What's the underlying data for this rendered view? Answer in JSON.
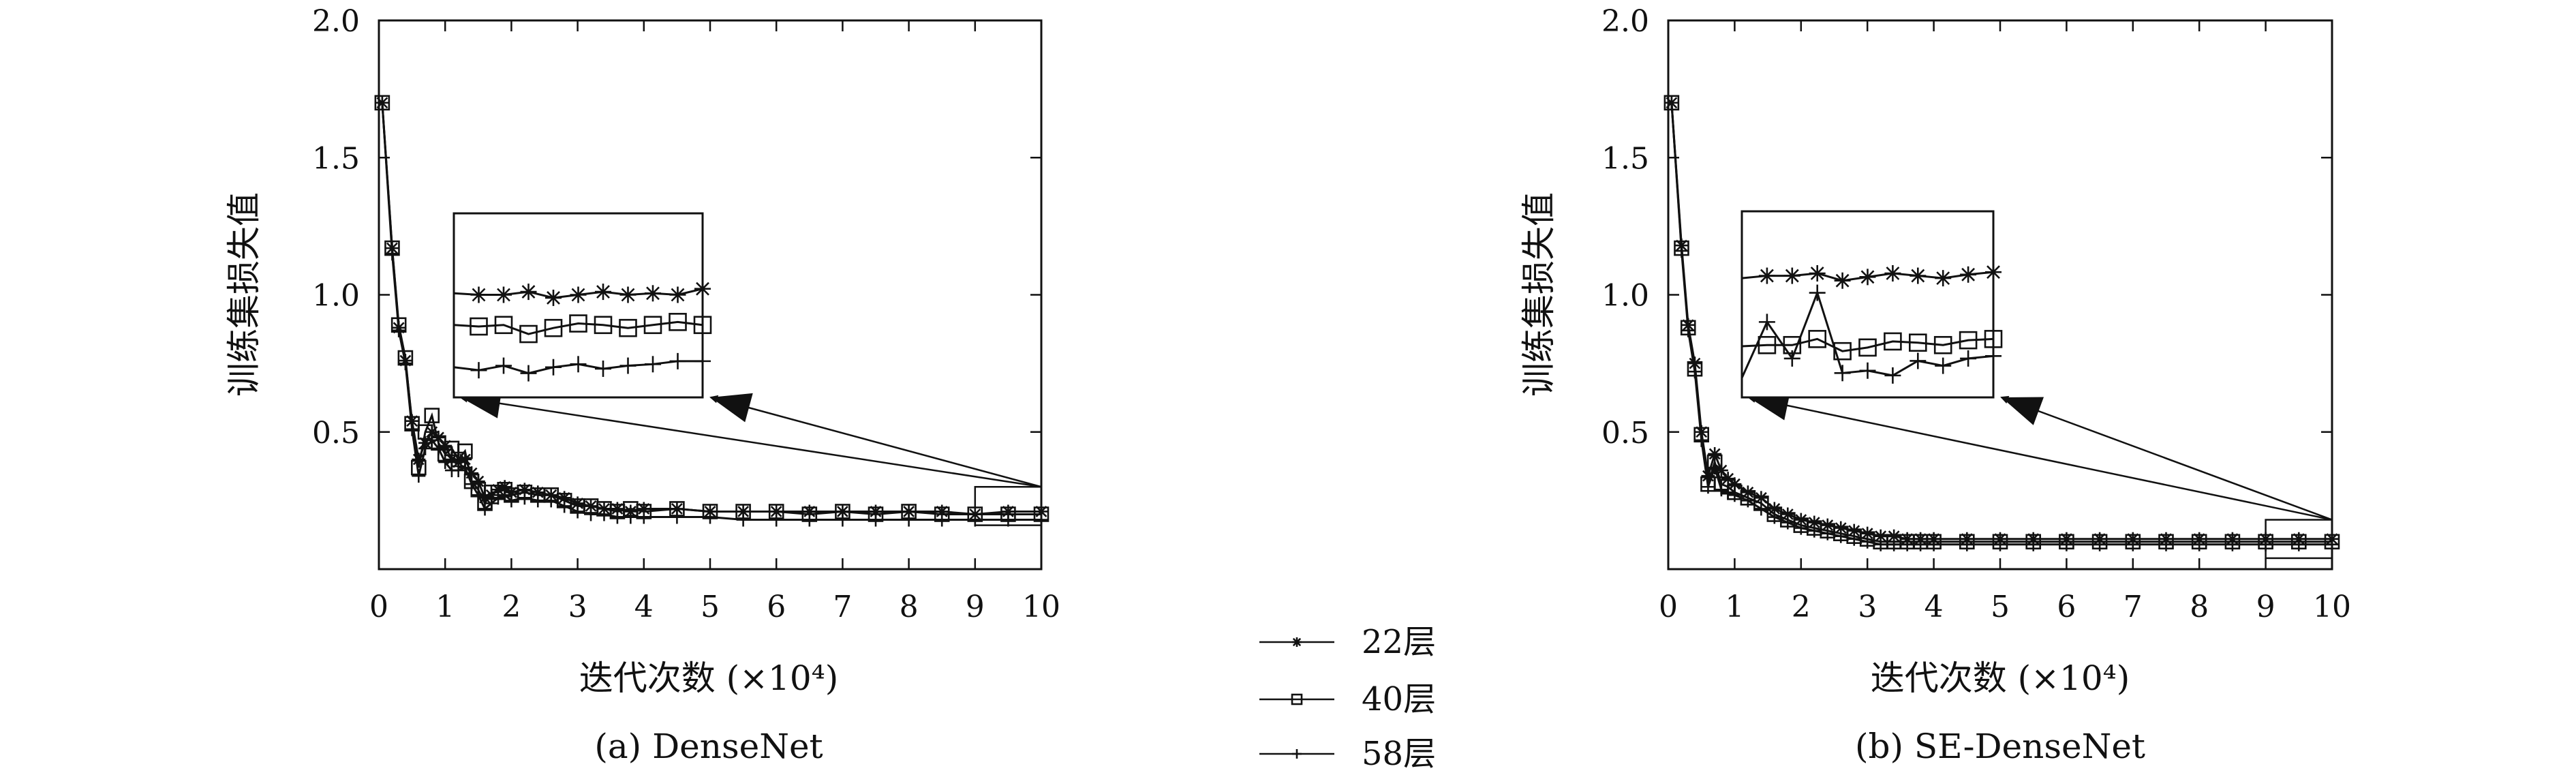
{
  "legend": {
    "items": [
      {
        "label": "22层",
        "marker": "star"
      },
      {
        "label": "40层",
        "marker": "square"
      },
      {
        "label": "58层",
        "marker": "plus"
      }
    ]
  },
  "chart_data": [
    {
      "type": "line",
      "caption": "(a) DenseNet",
      "xlabel": "迭代次数 (×10⁴)",
      "ylabel": "训练集损失值",
      "xlim": [
        0,
        10
      ],
      "ylim": [
        0,
        2.0
      ],
      "xticks": [
        "0",
        "1",
        "2",
        "3",
        "4",
        "5",
        "6",
        "7",
        "8",
        "9",
        "10"
      ],
      "yticks": [
        "0.5",
        "1.0",
        "1.5",
        "2.0"
      ],
      "grid": false,
      "series": [
        {
          "name": "22层",
          "marker": "star",
          "x": [
            0.05,
            0.2,
            0.3,
            0.4,
            0.5,
            0.6,
            0.7,
            0.8,
            0.9,
            1.0,
            1.1,
            1.2,
            1.3,
            1.4,
            1.5,
            1.6,
            1.7,
            1.8,
            1.9,
            2.0,
            2.2,
            2.4,
            2.6,
            2.8,
            3.0,
            3.2,
            3.4,
            3.6,
            3.8,
            4.0,
            4.5,
            5.0,
            5.5,
            6.0,
            6.5,
            7.0,
            7.5,
            8.0,
            8.5,
            9.0,
            9.5,
            10.0
          ],
          "y": [
            1.7,
            1.17,
            0.88,
            0.76,
            0.54,
            0.4,
            0.46,
            0.5,
            0.48,
            0.45,
            0.4,
            0.39,
            0.4,
            0.35,
            0.32,
            0.26,
            0.27,
            0.29,
            0.3,
            0.28,
            0.29,
            0.28,
            0.27,
            0.26,
            0.24,
            0.23,
            0.22,
            0.22,
            0.21,
            0.22,
            0.22,
            0.21,
            0.21,
            0.21,
            0.21,
            0.21,
            0.21,
            0.21,
            0.21,
            0.2,
            0.21,
            0.21
          ]
        },
        {
          "name": "40层",
          "marker": "square",
          "x": [
            0.05,
            0.2,
            0.3,
            0.4,
            0.5,
            0.6,
            0.7,
            0.8,
            0.9,
            1.0,
            1.1,
            1.2,
            1.3,
            1.4,
            1.5,
            1.6,
            1.7,
            1.8,
            1.9,
            2.0,
            2.2,
            2.4,
            2.6,
            2.8,
            3.0,
            3.2,
            3.4,
            3.6,
            3.8,
            4.0,
            4.5,
            5.0,
            5.5,
            6.0,
            6.5,
            7.0,
            7.5,
            8.0,
            8.5,
            9.0,
            9.5,
            10.0
          ],
          "y": [
            1.7,
            1.17,
            0.89,
            0.77,
            0.53,
            0.37,
            0.5,
            0.56,
            0.46,
            0.42,
            0.44,
            0.4,
            0.43,
            0.32,
            0.29,
            0.24,
            0.28,
            0.28,
            0.29,
            0.27,
            0.28,
            0.27,
            0.27,
            0.25,
            0.23,
            0.23,
            0.22,
            0.21,
            0.22,
            0.21,
            0.22,
            0.21,
            0.21,
            0.21,
            0.2,
            0.21,
            0.2,
            0.21,
            0.2,
            0.2,
            0.2,
            0.2
          ]
        },
        {
          "name": "58层",
          "marker": "plus",
          "x": [
            0.05,
            0.2,
            0.3,
            0.4,
            0.5,
            0.6,
            0.7,
            0.8,
            0.9,
            1.0,
            1.1,
            1.2,
            1.3,
            1.4,
            1.5,
            1.6,
            1.7,
            1.8,
            1.9,
            2.0,
            2.2,
            2.4,
            2.6,
            2.8,
            3.0,
            3.2,
            3.4,
            3.6,
            3.8,
            4.0,
            4.5,
            5.0,
            5.5,
            6.0,
            6.5,
            7.0,
            7.5,
            8.0,
            8.5,
            9.0,
            9.5,
            10.0
          ],
          "y": [
            1.7,
            1.15,
            0.87,
            0.75,
            0.51,
            0.34,
            0.44,
            0.47,
            0.44,
            0.39,
            0.36,
            0.36,
            0.37,
            0.31,
            0.27,
            0.22,
            0.24,
            0.26,
            0.27,
            0.25,
            0.26,
            0.25,
            0.25,
            0.23,
            0.21,
            0.2,
            0.2,
            0.19,
            0.19,
            0.19,
            0.19,
            0.19,
            0.18,
            0.18,
            0.18,
            0.18,
            0.18,
            0.18,
            0.18,
            0.18,
            0.18,
            0.18
          ]
        }
      ],
      "inset": {
        "source_x": [
          9.0,
          10.0
        ],
        "source_y": [
          0.16,
          0.3
        ],
        "series": [
          {
            "name": "22层",
            "y": [
              0.985,
              0.98,
              0.98,
              0.99,
              0.97,
              0.98,
              0.99,
              0.98,
              0.985,
              0.98,
              1.0
            ]
          },
          {
            "name": "40层",
            "y": [
              0.88,
              0.875,
              0.88,
              0.85,
              0.87,
              0.885,
              0.88,
              0.87,
              0.88,
              0.89,
              0.88
            ]
          },
          {
            "name": "58层",
            "y": [
              0.74,
              0.73,
              0.745,
              0.72,
              0.74,
              0.75,
              0.735,
              0.745,
              0.75,
              0.76,
              0.76
            ]
          }
        ]
      }
    },
    {
      "type": "line",
      "caption": "(b) SE-DenseNet",
      "xlabel": "迭代次数 (×10⁴)",
      "ylabel": "训练集损失值",
      "xlim": [
        0,
        10
      ],
      "ylim": [
        0,
        2.0
      ],
      "xticks": [
        "0",
        "1",
        "2",
        "3",
        "4",
        "5",
        "6",
        "7",
        "8",
        "9",
        "10"
      ],
      "yticks": [
        "0.5",
        "1.0",
        "1.5",
        "2.0"
      ],
      "grid": false,
      "series": [
        {
          "name": "22层",
          "marker": "star",
          "x": [
            0.05,
            0.2,
            0.3,
            0.4,
            0.5,
            0.6,
            0.7,
            0.8,
            0.9,
            1.0,
            1.2,
            1.4,
            1.6,
            1.8,
            2.0,
            2.2,
            2.4,
            2.6,
            2.8,
            3.0,
            3.2,
            3.4,
            3.6,
            3.8,
            4.0,
            4.5,
            5.0,
            5.5,
            6.0,
            6.5,
            7.0,
            7.5,
            8.0,
            8.5,
            9.0,
            9.5,
            10.0
          ],
          "y": [
            1.7,
            1.18,
            0.89,
            0.75,
            0.5,
            0.34,
            0.42,
            0.36,
            0.33,
            0.31,
            0.28,
            0.26,
            0.22,
            0.2,
            0.18,
            0.17,
            0.16,
            0.15,
            0.14,
            0.13,
            0.12,
            0.12,
            0.11,
            0.11,
            0.11,
            0.11,
            0.11,
            0.11,
            0.11,
            0.11,
            0.11,
            0.11,
            0.11,
            0.11,
            0.11,
            0.11,
            0.11
          ]
        },
        {
          "name": "40层",
          "marker": "square",
          "x": [
            0.05,
            0.2,
            0.3,
            0.4,
            0.5,
            0.6,
            0.7,
            0.8,
            0.9,
            1.0,
            1.2,
            1.4,
            1.6,
            1.8,
            2.0,
            2.2,
            2.4,
            2.6,
            2.8,
            3.0,
            3.2,
            3.4,
            3.6,
            3.8,
            4.0,
            4.5,
            5.0,
            5.5,
            6.0,
            6.5,
            7.0,
            7.5,
            8.0,
            8.5,
            9.0,
            9.5,
            10.0
          ],
          "y": [
            1.7,
            1.17,
            0.88,
            0.73,
            0.49,
            0.31,
            0.39,
            0.31,
            0.3,
            0.28,
            0.26,
            0.24,
            0.2,
            0.18,
            0.16,
            0.15,
            0.14,
            0.13,
            0.12,
            0.11,
            0.1,
            0.1,
            0.1,
            0.1,
            0.1,
            0.1,
            0.1,
            0.1,
            0.1,
            0.1,
            0.1,
            0.1,
            0.1,
            0.1,
            0.1,
            0.1,
            0.1
          ]
        },
        {
          "name": "58层",
          "marker": "plus",
          "x": [
            0.05,
            0.2,
            0.3,
            0.4,
            0.5,
            0.6,
            0.7,
            0.8,
            0.9,
            1.0,
            1.2,
            1.4,
            1.6,
            1.8,
            2.0,
            2.2,
            2.4,
            2.6,
            2.8,
            3.0,
            3.2,
            3.4,
            3.6,
            3.8,
            4.0,
            4.5,
            5.0,
            5.5,
            6.0,
            6.5,
            7.0,
            7.5,
            8.0,
            8.5,
            9.0,
            9.5,
            10.0
          ],
          "y": [
            1.7,
            1.16,
            0.87,
            0.72,
            0.47,
            0.3,
            0.37,
            0.29,
            0.28,
            0.27,
            0.25,
            0.22,
            0.19,
            0.17,
            0.15,
            0.14,
            0.13,
            0.12,
            0.11,
            0.1,
            0.09,
            0.09,
            0.09,
            0.09,
            0.09,
            0.09,
            0.09,
            0.09,
            0.09,
            0.09,
            0.09,
            0.09,
            0.09,
            0.09,
            0.09,
            0.09,
            0.09
          ]
        }
      ],
      "inset": {
        "source_x": [
          9.0,
          10.0
        ],
        "source_y": [
          0.04,
          0.18
        ],
        "series": [
          {
            "name": "22层",
            "y": [
              1.16,
              1.17,
              1.17,
              1.18,
              1.15,
              1.165,
              1.18,
              1.17,
              1.16,
              1.175,
              1.185
            ]
          },
          {
            "name": "40层",
            "y": [
              0.88,
              0.885,
              0.885,
              0.91,
              0.86,
              0.875,
              0.9,
              0.895,
              0.885,
              0.905,
              0.91
            ]
          },
          {
            "name": "58层",
            "y": [
              0.75,
              0.98,
              0.83,
              1.1,
              0.77,
              0.78,
              0.76,
              0.82,
              0.8,
              0.83,
              0.84
            ]
          }
        ]
      }
    }
  ]
}
